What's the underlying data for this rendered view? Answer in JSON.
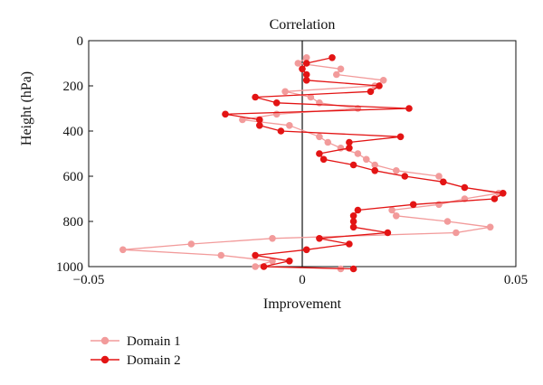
{
  "chart_data": {
    "type": "line",
    "title": "Correlation",
    "xlabel": "Improvement",
    "ylabel": "Height (hPa)",
    "xlim": [
      -0.05,
      0.05
    ],
    "ylim": [
      0,
      1000
    ],
    "y_inverted": true,
    "xticks": [
      "−0.05",
      "0",
      "0.05"
    ],
    "yticks": [
      "0",
      "200",
      "400",
      "600",
      "800",
      "1000"
    ],
    "xtick_values": [
      -0.05,
      0,
      0.05
    ],
    "ytick_values": [
      0,
      200,
      400,
      600,
      800,
      1000
    ],
    "grid": false,
    "legend_position": "bottom-left, below plot",
    "series": [
      {
        "name": "Domain 1",
        "color": "#f29b9b",
        "points": [
          [
            0.001,
            75
          ],
          [
            -0.001,
            100
          ],
          [
            0.009,
            125
          ],
          [
            0.008,
            150
          ],
          [
            0.019,
            175
          ],
          [
            0.017,
            200
          ],
          [
            -0.004,
            225
          ],
          [
            0.002,
            250
          ],
          [
            0.004,
            275
          ],
          [
            0.013,
            300
          ],
          [
            -0.006,
            325
          ],
          [
            -0.014,
            350
          ],
          [
            -0.003,
            375
          ],
          [
            0.004,
            425
          ],
          [
            0.006,
            450
          ],
          [
            0.009,
            475
          ],
          [
            0.013,
            500
          ],
          [
            0.015,
            525
          ],
          [
            0.017,
            550
          ],
          [
            0.022,
            575
          ],
          [
            0.032,
            600
          ],
          [
            0.033,
            625
          ],
          [
            0.038,
            650
          ],
          [
            0.046,
            675
          ],
          [
            0.038,
            700
          ],
          [
            0.032,
            725
          ],
          [
            0.021,
            750
          ],
          [
            0.022,
            775
          ],
          [
            0.034,
            800
          ],
          [
            0.044,
            825
          ],
          [
            0.036,
            850
          ],
          [
            -0.007,
            875
          ],
          [
            -0.026,
            900
          ],
          [
            -0.042,
            925
          ],
          [
            -0.019,
            950
          ],
          [
            -0.007,
            975
          ],
          [
            -0.011,
            1000
          ],
          [
            0.009,
            1010
          ]
        ]
      },
      {
        "name": "Domain 2",
        "color": "#e31414",
        "points": [
          [
            0.007,
            75
          ],
          [
            0.001,
            100
          ],
          [
            0.0,
            125
          ],
          [
            0.001,
            150
          ],
          [
            0.001,
            175
          ],
          [
            0.018,
            200
          ],
          [
            0.016,
            225
          ],
          [
            -0.011,
            250
          ],
          [
            -0.006,
            275
          ],
          [
            0.025,
            300
          ],
          [
            -0.018,
            325
          ],
          [
            -0.01,
            350
          ],
          [
            -0.01,
            375
          ],
          [
            -0.005,
            400
          ],
          [
            0.023,
            425
          ],
          [
            0.011,
            450
          ],
          [
            0.011,
            475
          ],
          [
            0.004,
            500
          ],
          [
            0.005,
            525
          ],
          [
            0.012,
            550
          ],
          [
            0.017,
            575
          ],
          [
            0.024,
            600
          ],
          [
            0.033,
            625
          ],
          [
            0.038,
            650
          ],
          [
            0.047,
            675
          ],
          [
            0.045,
            700
          ],
          [
            0.026,
            725
          ],
          [
            0.013,
            750
          ],
          [
            0.012,
            775
          ],
          [
            0.012,
            800
          ],
          [
            0.012,
            825
          ],
          [
            0.02,
            850
          ],
          [
            0.004,
            875
          ],
          [
            0.011,
            900
          ],
          [
            0.001,
            925
          ],
          [
            -0.011,
            950
          ],
          [
            -0.003,
            975
          ],
          [
            -0.009,
            1000
          ],
          [
            0.012,
            1010
          ]
        ]
      }
    ]
  }
}
